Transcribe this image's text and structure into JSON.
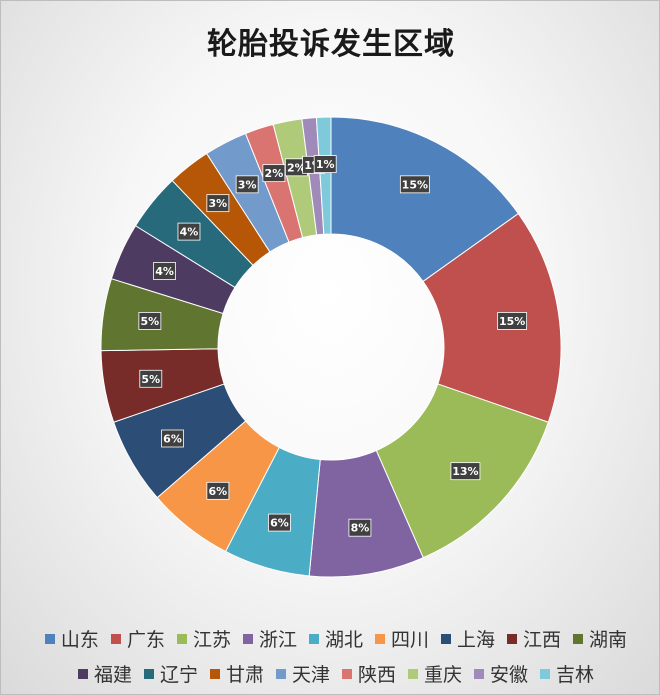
{
  "chart_data": {
    "type": "pie",
    "title": "轮胎投诉发生区域",
    "donut": true,
    "legend_position": "bottom",
    "categories": [
      "山东",
      "广东",
      "江苏",
      "浙江",
      "湖北",
      "四川",
      "上海",
      "江西",
      "湖南",
      "福建",
      "辽宁",
      "甘肃",
      "天津",
      "陕西",
      "重庆",
      "安徽",
      "吉林"
    ],
    "values": [
      15,
      15,
      13,
      8,
      6,
      6,
      6,
      5,
      5,
      4,
      4,
      3,
      3,
      2,
      2,
      1,
      1
    ],
    "labels": [
      "15%",
      "15%",
      "13%",
      "8%",
      "6%",
      "6%",
      "6%",
      "5%",
      "5%",
      "4%",
      "4%",
      "3%",
      "3%",
      "2%",
      "2%",
      "1%",
      "1%"
    ],
    "colors": [
      "#4F81BD",
      "#C0504D",
      "#9BBB59",
      "#8064A2",
      "#4BACC6",
      "#F79646",
      "#2C4D75",
      "#772C2A",
      "#5F7530",
      "#4D3B62",
      "#276A7C",
      "#B65708",
      "#729ACA",
      "#D97471",
      "#AFCB7A",
      "#9F8AB9",
      "#7ECADB"
    ]
  }
}
